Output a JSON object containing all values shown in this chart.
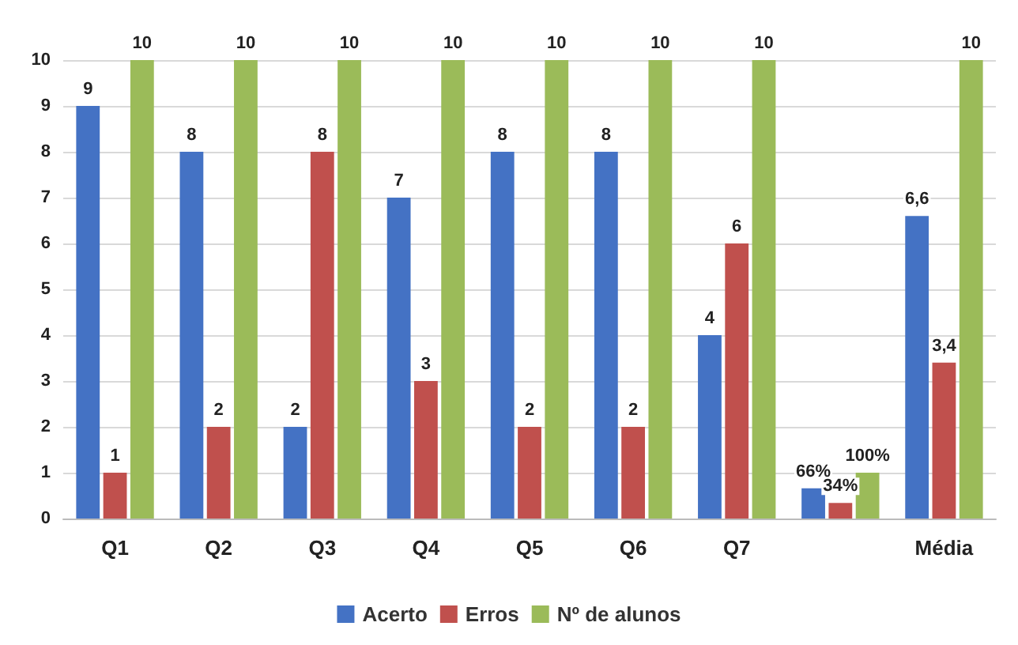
{
  "chart_data": {
    "type": "bar",
    "categories": [
      "Q1",
      "Q2",
      "Q3",
      "Q4",
      "Q5",
      "Q6",
      "Q7",
      null,
      "Média"
    ],
    "series": [
      {
        "name": "Acerto",
        "color": "#4472c4",
        "values": [
          9,
          8,
          2,
          7,
          8,
          8,
          4,
          0.66,
          6.6
        ],
        "value_labels": [
          "9",
          "8",
          "2",
          "7",
          "8",
          "8",
          "4",
          "66%",
          "6,6"
        ]
      },
      {
        "name": "Erros",
        "color": "#c0504d",
        "values": [
          1,
          2,
          8,
          3,
          2,
          2,
          6,
          0.34,
          3.4
        ],
        "value_labels": [
          "1",
          "2",
          "8",
          "3",
          "2",
          "2",
          "6",
          "34%",
          "3,4"
        ]
      },
      {
        "name": "Nº de alunos",
        "color": "#9bbb59",
        "values": [
          10,
          10,
          10,
          10,
          10,
          10,
          10,
          1,
          10
        ],
        "value_labels": [
          "10",
          "10",
          "10",
          "10",
          "10",
          "10",
          "10",
          "100%",
          "10"
        ]
      }
    ],
    "ylim": [
      0,
      10
    ],
    "yticks": [
      0,
      1,
      2,
      3,
      4,
      5,
      6,
      7,
      8,
      9,
      10
    ],
    "grid": "y",
    "legend": "bottom"
  }
}
